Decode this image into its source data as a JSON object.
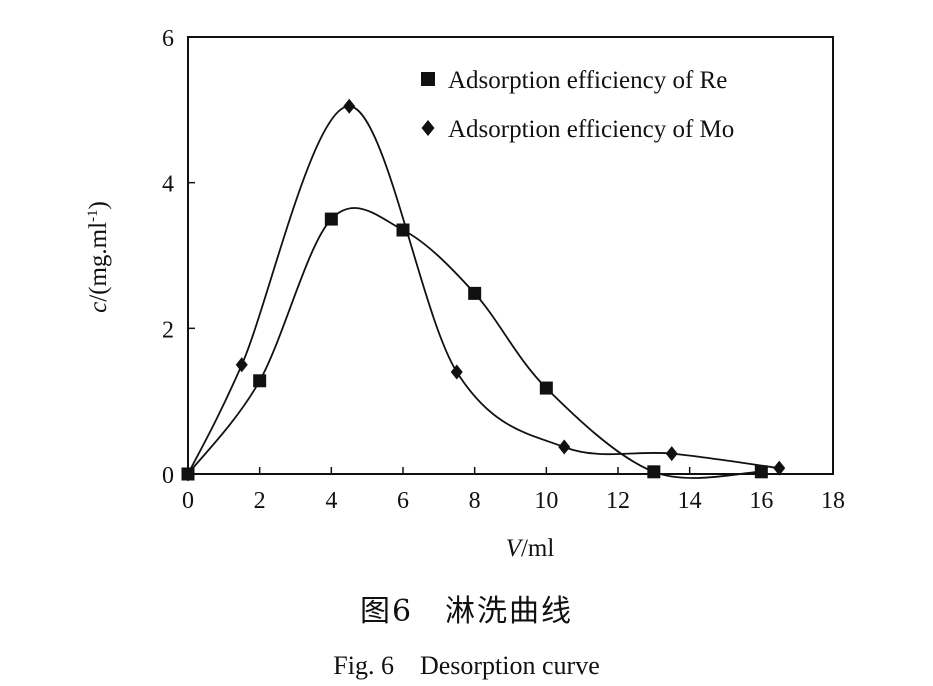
{
  "chart_data": {
    "type": "line",
    "xlabel": "V/ml",
    "ylabel": "c/(mg.ml-1)",
    "xlim": [
      0,
      18
    ],
    "ylim": [
      0,
      6
    ],
    "x_ticks": [
      "0",
      "2",
      "4",
      "6",
      "8",
      "10",
      "12",
      "14",
      "16",
      "18"
    ],
    "y_ticks": [
      "0",
      "2",
      "4",
      "6"
    ],
    "grid": false,
    "legend_position": "top-right",
    "series": [
      {
        "name": "Adsorption efficiency of Re",
        "marker": "square",
        "x": [
          0,
          2,
          4,
          6,
          8,
          10,
          13,
          16
        ],
        "y": [
          0.0,
          1.28,
          3.5,
          3.35,
          2.48,
          1.18,
          0.03,
          0.03
        ]
      },
      {
        "name": "Adsorption efficiency of Mo",
        "marker": "diamond",
        "x": [
          0,
          1.5,
          4.5,
          7.5,
          10.5,
          13.5,
          16.5
        ],
        "y": [
          0.0,
          1.5,
          5.05,
          1.4,
          0.37,
          0.28,
          0.08
        ]
      }
    ]
  },
  "caption": {
    "chinese": "图6　淋洗曲线",
    "english": "Fig. 6　Desorption curve"
  },
  "colors": {
    "ink": "#111111",
    "background": "#ffffff"
  }
}
